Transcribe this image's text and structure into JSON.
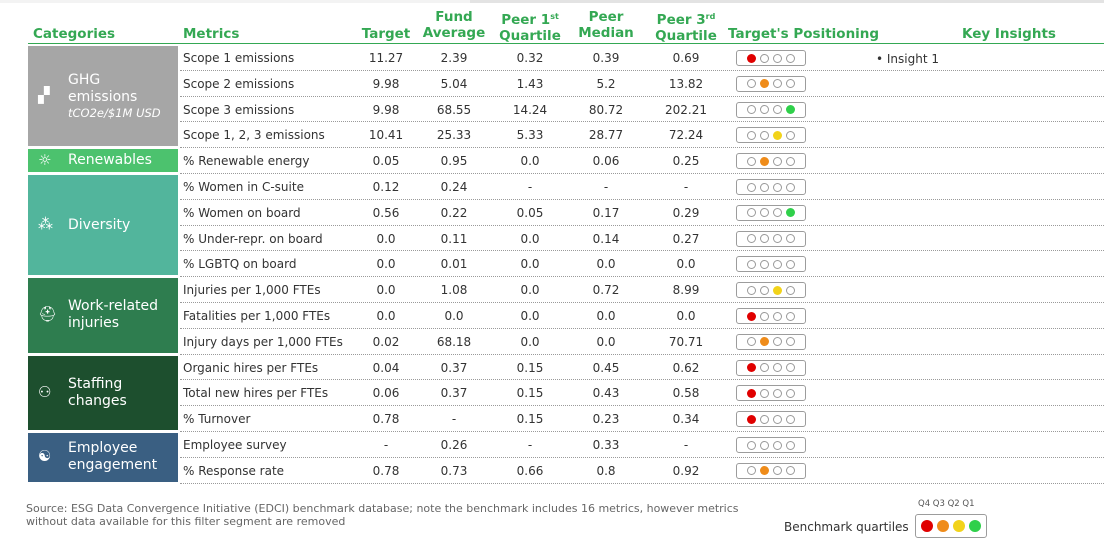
{
  "headers": {
    "categories": "Categories",
    "metrics": "Metrics",
    "target": "Target",
    "fund_average": [
      "Fund",
      "Average"
    ],
    "peer_q1": [
      "Peer 1",
      "st",
      "Quartile"
    ],
    "peer_median": [
      "Peer",
      "Median"
    ],
    "peer_q3": [
      "Peer 3",
      "rd",
      "Quartile"
    ],
    "positioning": "Target's Positioning",
    "insights": "Key Insights"
  },
  "colors": {
    "header_green": "#34a853",
    "ghg": "#a6a6a6",
    "renewables": "#4cc26e",
    "diversity": "#52b59c",
    "injuries": "#2e7d4f",
    "staffing": "#1d4f2e",
    "engagement": "#3a5f82",
    "q4": "#e00000",
    "q3": "#ef8c1a",
    "q2": "#f2d31a",
    "q1": "#2fd04a"
  },
  "categories": [
    {
      "id": "ghg",
      "icon": "factory-icon",
      "icon_glyph": "▞",
      "title_lines": [
        "GHG",
        "emissions"
      ],
      "subtitle": "tCO2e/$1M USD",
      "color": "#a6a6a6"
    },
    {
      "id": "renewables",
      "icon": "sun-icon",
      "icon_glyph": "☼",
      "title_lines": [
        "Renewables"
      ],
      "subtitle": "",
      "color": "#4cc26e"
    },
    {
      "id": "diversity",
      "icon": "people-network-icon",
      "icon_glyph": "⁂",
      "title_lines": [
        "Diversity"
      ],
      "subtitle": "",
      "color": "#52b59c"
    },
    {
      "id": "injuries",
      "icon": "worker-icon",
      "icon_glyph": "⛑",
      "title_lines": [
        "Work-related",
        "injuries"
      ],
      "subtitle": "",
      "color": "#2e7d4f"
    },
    {
      "id": "staffing",
      "icon": "team-icon",
      "icon_glyph": "⚇",
      "title_lines": [
        "Staffing",
        "changes"
      ],
      "subtitle": "",
      "color": "#1d4f2e"
    },
    {
      "id": "engagement",
      "icon": "handshake-icon",
      "icon_glyph": "☯",
      "title_lines": [
        "Employee",
        "engagement"
      ],
      "subtitle": "",
      "color": "#3a5f82"
    }
  ],
  "rows": [
    {
      "cat": "ghg",
      "metric": "Scope 1 emissions",
      "target": "11.27",
      "fund": "2.39",
      "q1": "0.32",
      "median": "0.39",
      "q3": "0.69",
      "position": "Q4"
    },
    {
      "cat": "ghg",
      "metric": "Scope 2 emissions",
      "target": "9.98",
      "fund": "5.04",
      "q1": "1.43",
      "median": "5.2",
      "q3": "13.82",
      "position": "Q3"
    },
    {
      "cat": "ghg",
      "metric": "Scope 3 emissions",
      "target": "9.98",
      "fund": "68.55",
      "q1": "14.24",
      "median": "80.72",
      "q3": "202.21",
      "position": "Q1"
    },
    {
      "cat": "ghg",
      "metric": "Scope 1, 2, 3 emissions",
      "target": "10.41",
      "fund": "25.33",
      "q1": "5.33",
      "median": "28.77",
      "q3": "72.24",
      "position": "Q2"
    },
    {
      "cat": "renewables",
      "metric": "% Renewable energy",
      "target": "0.05",
      "fund": "0.95",
      "q1": "0.0",
      "median": "0.06",
      "q3": "0.25",
      "position": "Q3"
    },
    {
      "cat": "diversity",
      "metric": "% Women in C-suite",
      "target": "0.12",
      "fund": "0.24",
      "q1": "-",
      "median": "-",
      "q3": "-",
      "position": ""
    },
    {
      "cat": "diversity",
      "metric": "% Women on board",
      "target": "0.56",
      "fund": "0.22",
      "q1": "0.05",
      "median": "0.17",
      "q3": "0.29",
      "position": "Q1"
    },
    {
      "cat": "diversity",
      "metric": "% Under-repr. on board",
      "target": "0.0",
      "fund": "0.11",
      "q1": "0.0",
      "median": "0.14",
      "q3": "0.27",
      "position": ""
    },
    {
      "cat": "diversity",
      "metric": "% LGBTQ  on board",
      "target": "0.0",
      "fund": "0.01",
      "q1": "0.0",
      "median": "0.0",
      "q3": "0.0",
      "position": ""
    },
    {
      "cat": "injuries",
      "metric": "Injuries per 1,000 FTEs",
      "target": "0.0",
      "fund": "1.08",
      "q1": "0.0",
      "median": "0.72",
      "q3": "8.99",
      "position": "Q2"
    },
    {
      "cat": "injuries",
      "metric": "Fatalities per 1,000 FTEs",
      "target": "0.0",
      "fund": "0.0",
      "q1": "0.0",
      "median": "0.0",
      "q3": "0.0",
      "position": "Q4"
    },
    {
      "cat": "injuries",
      "metric": "Injury days per 1,000 FTEs",
      "target": "0.02",
      "fund": "68.18",
      "q1": "0.0",
      "median": "0.0",
      "q3": "70.71",
      "position": "Q3"
    },
    {
      "cat": "staffing",
      "metric": "Organic hires per FTEs",
      "target": "0.04",
      "fund": "0.37",
      "q1": "0.15",
      "median": "0.45",
      "q3": "0.62",
      "position": "Q4"
    },
    {
      "cat": "staffing",
      "metric": "Total new hires per FTEs",
      "target": "0.06",
      "fund": "0.37",
      "q1": "0.15",
      "median": "0.43",
      "q3": "0.58",
      "position": "Q4"
    },
    {
      "cat": "staffing",
      "metric": "% Turnover",
      "target": "0.78",
      "fund": "-",
      "q1": "0.15",
      "median": "0.23",
      "q3": "0.34",
      "position": "Q4"
    },
    {
      "cat": "engagement",
      "metric": "Employee survey",
      "target": "-",
      "fund": "0.26",
      "q1": "-",
      "median": "0.33",
      "q3": "-",
      "position": ""
    },
    {
      "cat": "engagement",
      "metric": "% Response rate",
      "target": "0.78",
      "fund": "0.73",
      "q1": "0.66",
      "median": "0.8",
      "q3": "0.92",
      "position": "Q3"
    }
  ],
  "insights": [
    "•  Insight 1"
  ],
  "source": "Source: ESG Data Convergence Initiative (EDCI) benchmark database; note the benchmark includes 16 metrics, however metrics without data available for this filter segment are removed",
  "legend": {
    "quartile_labels": "Q4  Q3  Q2  Q1",
    "label": "Benchmark quartiles",
    "order": [
      "Q4",
      "Q3",
      "Q2",
      "Q1"
    ]
  }
}
